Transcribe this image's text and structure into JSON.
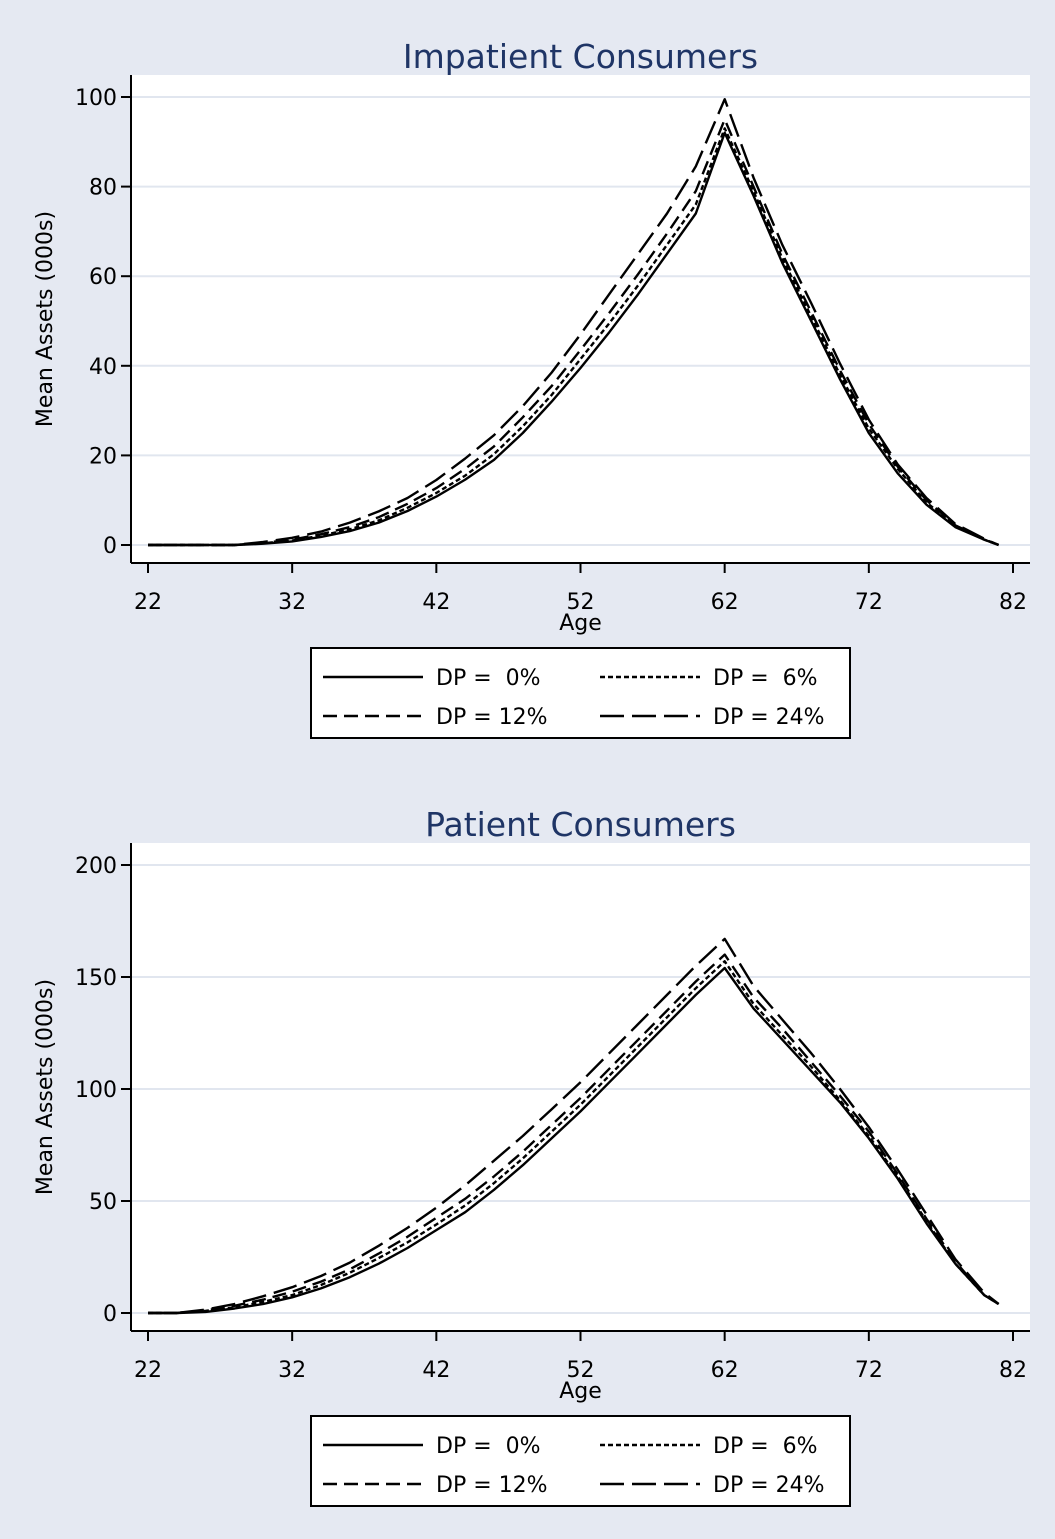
{
  "chart_data": [
    {
      "type": "line",
      "title": "Impatient Consumers",
      "xlabel": "Age",
      "ylabel": "Mean Assets (000s)",
      "xlim": [
        22,
        82
      ],
      "ylim": [
        0,
        100
      ],
      "xticks": [
        22,
        32,
        42,
        52,
        62,
        72,
        82
      ],
      "yticks": [
        0,
        20,
        40,
        60,
        80,
        100
      ],
      "grid": true,
      "legend_position": "bottom",
      "series": [
        {
          "name": "DP =  0%",
          "dash": "solid",
          "x": [
            22,
            24,
            26,
            28,
            30,
            32,
            34,
            36,
            38,
            40,
            42,
            44,
            46,
            48,
            50,
            52,
            54,
            56,
            58,
            60,
            62,
            64,
            66,
            68,
            70,
            72,
            74,
            76,
            78,
            80,
            81
          ],
          "y": [
            0,
            0,
            0,
            0,
            0.3,
            0.8,
            1.8,
            3.1,
            5,
            7.6,
            10.8,
            14.6,
            19,
            25,
            32,
            39.5,
            47.5,
            56,
            65,
            74,
            92,
            78,
            63,
            50,
            37,
            25,
            16,
            9,
            4,
            1.2,
            0
          ]
        },
        {
          "name": "DP =  6%",
          "dash": "short-dash",
          "x": [
            22,
            24,
            26,
            28,
            30,
            32,
            34,
            36,
            38,
            40,
            42,
            44,
            46,
            48,
            50,
            52,
            54,
            56,
            58,
            60,
            62,
            64,
            66,
            68,
            70,
            72,
            74,
            76,
            78,
            80,
            81
          ],
          "y": [
            0,
            0,
            0,
            0,
            0.4,
            1,
            2.1,
            3.5,
            5.5,
            8.3,
            11.6,
            15.5,
            20.3,
            26.5,
            33.5,
            41.5,
            49.5,
            58,
            67,
            76,
            93,
            79,
            64,
            51,
            38,
            26,
            17,
            9.5,
            4.2,
            1.2,
            0
          ]
        },
        {
          "name": "DP = 12%",
          "dash": "medium-dash",
          "x": [
            22,
            24,
            26,
            28,
            30,
            32,
            34,
            36,
            38,
            40,
            42,
            44,
            46,
            48,
            50,
            52,
            54,
            56,
            58,
            60,
            62,
            64,
            66,
            68,
            70,
            72,
            74,
            76,
            78,
            80,
            81
          ],
          "y": [
            0,
            0,
            0,
            0,
            0.5,
            1.2,
            2.4,
            4,
            6.2,
            9.2,
            12.7,
            17,
            22,
            28.5,
            35.5,
            43.5,
            51.8,
            60.5,
            69.5,
            79,
            95,
            80,
            65,
            52,
            39,
            27,
            17.5,
            10,
            4.4,
            1.3,
            0
          ]
        },
        {
          "name": "DP = 24%",
          "dash": "long-dash",
          "x": [
            22,
            24,
            26,
            28,
            30,
            32,
            34,
            36,
            38,
            40,
            42,
            44,
            46,
            48,
            50,
            52,
            54,
            56,
            58,
            60,
            62,
            64,
            66,
            68,
            70,
            72,
            74,
            76,
            78,
            80,
            81
          ],
          "y": [
            0,
            0,
            0,
            0,
            0.7,
            1.6,
            3,
            5,
            7.5,
            10.5,
            14.5,
            19.3,
            24.5,
            31,
            38.5,
            47,
            56,
            65,
            74,
            84.5,
            99.5,
            82,
            67,
            54,
            40.5,
            28,
            18,
            10.5,
            4.7,
            1.4,
            0
          ]
        }
      ]
    },
    {
      "type": "line",
      "title": "Patient Consumers",
      "xlabel": "Age",
      "ylabel": "Mean Assets (000s)",
      "xlim": [
        22,
        82
      ],
      "ylim": [
        0,
        200
      ],
      "xticks": [
        22,
        32,
        42,
        52,
        62,
        72,
        82
      ],
      "yticks": [
        0,
        50,
        100,
        150,
        200
      ],
      "grid": true,
      "legend_position": "bottom",
      "series": [
        {
          "name": "DP =  0%",
          "dash": "solid",
          "x": [
            22,
            24,
            26,
            28,
            30,
            32,
            34,
            36,
            38,
            40,
            42,
            44,
            46,
            48,
            50,
            52,
            54,
            56,
            58,
            60,
            62,
            64,
            66,
            68,
            70,
            72,
            74,
            76,
            78,
            80,
            81
          ],
          "y": [
            0,
            0,
            0.5,
            2,
            4,
            7,
            11,
            16,
            22,
            29,
            37,
            45,
            55,
            66,
            78,
            90,
            103,
            116,
            129,
            142,
            154,
            136,
            122,
            108,
            94,
            78,
            60,
            40,
            22,
            8,
            4
          ]
        },
        {
          "name": "DP =  6%",
          "dash": "short-dash",
          "x": [
            22,
            24,
            26,
            28,
            30,
            32,
            34,
            36,
            38,
            40,
            42,
            44,
            46,
            48,
            50,
            52,
            54,
            56,
            58,
            60,
            62,
            64,
            66,
            68,
            70,
            72,
            74,
            76,
            78,
            80,
            81
          ],
          "y": [
            0,
            0,
            1,
            2.5,
            5,
            8,
            12.5,
            18,
            24.5,
            31.5,
            39.5,
            48,
            58,
            69,
            81,
            93,
            106,
            119,
            132,
            145,
            157,
            138,
            124,
            110,
            95,
            79,
            61,
            41,
            22,
            8,
            4
          ]
        },
        {
          "name": "DP = 12%",
          "dash": "medium-dash",
          "x": [
            22,
            24,
            26,
            28,
            30,
            32,
            34,
            36,
            38,
            40,
            42,
            44,
            46,
            48,
            50,
            52,
            54,
            56,
            58,
            60,
            62,
            64,
            66,
            68,
            70,
            72,
            74,
            76,
            78,
            80,
            81
          ],
          "y": [
            0,
            0,
            1.2,
            3.2,
            6,
            9.5,
            14,
            19.5,
            26.5,
            34,
            42.5,
            51,
            61,
            72,
            84,
            96,
            109,
            122,
            135,
            148,
            160,
            141,
            127,
            112,
            97,
            81,
            62,
            42,
            23,
            8,
            4
          ]
        },
        {
          "name": "DP = 24%",
          "dash": "long-dash",
          "x": [
            22,
            24,
            26,
            28,
            30,
            32,
            34,
            36,
            38,
            40,
            42,
            44,
            46,
            48,
            50,
            52,
            54,
            56,
            58,
            60,
            62,
            64,
            66,
            68,
            70,
            72,
            74,
            76,
            78,
            80,
            81
          ],
          "y": [
            0,
            0,
            1.5,
            4,
            7.5,
            11.5,
            16.5,
            22.5,
            30,
            38,
            47,
            57,
            68,
            79,
            91,
            103,
            116,
            129,
            142,
            155,
            167,
            146,
            131,
            116,
            100,
            83,
            64,
            44,
            24,
            9,
            4
          ]
        }
      ]
    }
  ]
}
